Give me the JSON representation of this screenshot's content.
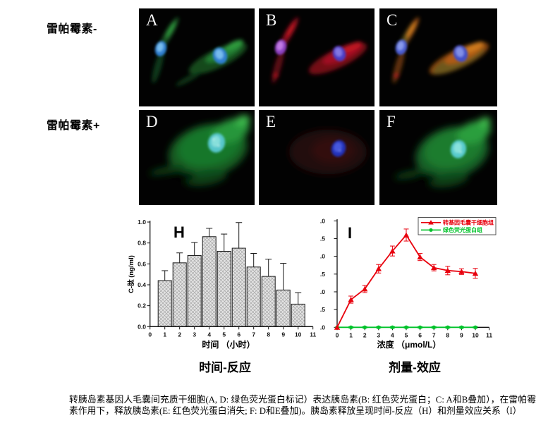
{
  "figure": {
    "row_labels": [
      "雷帕霉素-",
      "雷帕霉素+"
    ],
    "panel_letters": [
      "A",
      "B",
      "C",
      "D",
      "E",
      "F"
    ],
    "sub_captions": [
      "时间-反应",
      "剂量-效应"
    ],
    "caption": "转胰岛素基因人毛囊间充质干细胞(A, D: 绿色荧光蛋白标记）表达胰岛素(B: 红色荧光蛋白；C: A和B叠加），在雷帕霉素作用下，释放胰岛素(E: 红色荧光蛋白消失; F: D和E叠加)。胰岛素释放呈现时间-反应（H）和剂量效应关系（I）"
  },
  "chart_data": [
    {
      "id": "H",
      "type": "bar",
      "panel_label": "H",
      "categories": [
        1,
        2,
        3,
        4,
        5,
        6,
        7,
        8,
        9,
        10
      ],
      "values": [
        0.44,
        0.61,
        0.68,
        0.86,
        0.72,
        0.75,
        0.57,
        0.48,
        0.35,
        0.215
      ],
      "errors_up": [
        0.095,
        0.095,
        0.125,
        0.08,
        0.165,
        0.245,
        0.13,
        0.165,
        0.255,
        0.11
      ],
      "xlabel": "时间 （小时）",
      "ylabel": "C-肽 (ng/ml)",
      "xlim": [
        0,
        11
      ],
      "ylim": [
        0.0,
        1.0
      ],
      "xticks": [
        0,
        1,
        2,
        3,
        4,
        5,
        6,
        7,
        8,
        9,
        10,
        11
      ],
      "yticks": [
        0.0,
        0.2,
        0.4,
        0.6,
        0.8,
        1.0
      ],
      "bar_fill": "#e4e4e4",
      "hatch": true,
      "grid": false,
      "caption": "时间-反应"
    },
    {
      "id": "I",
      "type": "line",
      "panel_label": "I",
      "x": [
        0,
        1,
        2,
        3,
        4,
        5,
        6,
        7,
        8,
        9,
        10
      ],
      "series": [
        {
          "name": "转基因毛囊干细胞组",
          "color": "#e8000d",
          "marker": "triangle",
          "values": [
            0.0,
            0.78,
            1.08,
            1.65,
            2.15,
            2.6,
            1.98,
            1.68,
            1.6,
            1.57,
            1.52
          ],
          "errors": [
            0.0,
            0.1,
            0.1,
            0.12,
            0.14,
            0.17,
            0.1,
            0.09,
            0.12,
            0.08,
            0.14
          ]
        },
        {
          "name": "绿色荧光蛋白组",
          "color": "#00c32a",
          "marker": "circle",
          "values": [
            0,
            0,
            0,
            0,
            0,
            0,
            0,
            0,
            0,
            0,
            0
          ],
          "errors": [
            0,
            0.02,
            0.02,
            0.02,
            0.02,
            0.02,
            0.02,
            0.02,
            0.02,
            0.02,
            0.02
          ]
        }
      ],
      "xlabel": "浓度 （μmol/L）",
      "xlim": [
        0,
        11
      ],
      "ylim": [
        0.0,
        3.0
      ],
      "xticks": [
        0,
        1,
        2,
        3,
        4,
        5,
        6,
        7,
        8,
        9,
        10,
        11
      ],
      "yticks": [
        3.0,
        2.5,
        2.0,
        1.5,
        1.0,
        0.5,
        0.0
      ],
      "ytick_labels": [
        ".0",
        ".5",
        ".0",
        ".5",
        ".0",
        ".5",
        ".0"
      ],
      "legend_position": "top-right",
      "grid": false,
      "caption": "剂量-效应"
    }
  ]
}
